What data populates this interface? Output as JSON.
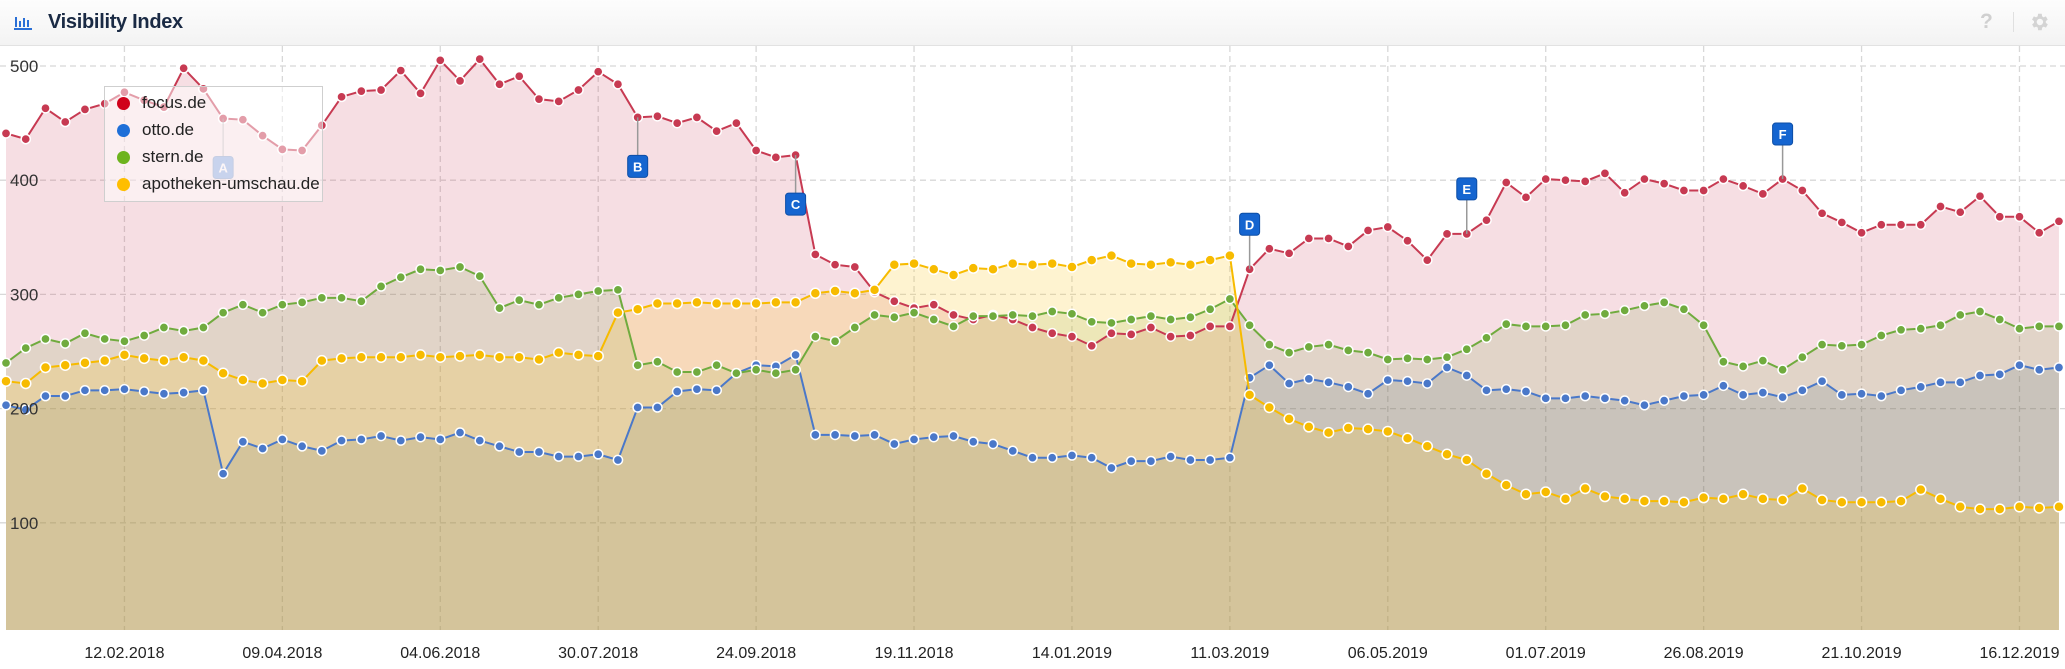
{
  "header": {
    "title": "Visibility Index",
    "help_label": "?"
  },
  "chart_data": {
    "type": "area",
    "title": "Visibility Index",
    "xlabel": "",
    "ylabel": "",
    "ylim": [
      0,
      520
    ],
    "yticks": [
      "100",
      "200",
      "300",
      "400",
      "500"
    ],
    "ytick_values": [
      100,
      200,
      300,
      400,
      500
    ],
    "x_start": "01.01.2018",
    "x_interval": "weekly",
    "xticks": [
      {
        "week": 6,
        "label": "12.02.2018"
      },
      {
        "week": 14,
        "label": "09.04.2018"
      },
      {
        "week": 22,
        "label": "04.06.2018"
      },
      {
        "week": 30,
        "label": "30.07.2018"
      },
      {
        "week": 38,
        "label": "24.09.2018"
      },
      {
        "week": 46,
        "label": "19.11.2018"
      },
      {
        "week": 54,
        "label": "14.01.2019"
      },
      {
        "week": 62,
        "label": "11.03.2019"
      },
      {
        "week": 70,
        "label": "06.05.2019"
      },
      {
        "week": 78,
        "label": "01.07.2019"
      },
      {
        "week": 86,
        "label": "26.08.2019"
      },
      {
        "week": 94,
        "label": "21.10.2019"
      },
      {
        "week": 102,
        "label": "16.12.2019"
      }
    ],
    "grid": true,
    "legend_position": "top-left",
    "series": [
      {
        "name": "focus.de",
        "color": "#c73a52",
        "fill": "rgba(200,60,90,0.17)",
        "values": [
          441,
          436,
          463,
          451,
          462,
          467,
          477,
          470,
          464,
          498,
          480,
          454,
          453,
          439,
          427,
          426,
          448,
          473,
          478,
          479,
          496,
          476,
          505,
          487,
          506,
          484,
          491,
          471,
          469,
          479,
          495,
          484,
          455,
          456,
          450,
          455,
          443,
          450,
          426,
          420,
          422,
          335,
          326,
          324,
          302,
          294,
          288,
          291,
          282,
          278,
          282,
          278,
          271,
          266,
          263,
          255,
          266,
          265,
          271,
          263,
          264,
          272,
          272,
          322,
          340,
          336,
          349,
          349,
          342,
          356,
          359,
          347,
          330,
          353,
          353,
          365,
          398,
          385,
          401,
          400,
          399,
          406,
          389,
          401,
          397,
          391,
          391,
          401,
          395,
          388,
          401,
          391,
          371,
          363,
          354,
          361,
          361,
          361,
          377,
          372,
          386,
          368,
          368,
          354,
          364
        ]
      },
      {
        "name": "otto.de",
        "color": "#4a78c9",
        "fill": "rgba(70,100,130,0.16)",
        "values": [
          203,
          199,
          211,
          211,
          216,
          216,
          217,
          215,
          213,
          214,
          216,
          143,
          171,
          165,
          173,
          167,
          163,
          172,
          173,
          176,
          172,
          175,
          173,
          179,
          172,
          167,
          162,
          162,
          158,
          158,
          160,
          155,
          201,
          201,
          215,
          217,
          216,
          231,
          238,
          237,
          247,
          177,
          177,
          176,
          177,
          169,
          173,
          175,
          176,
          171,
          169,
          163,
          157,
          157,
          159,
          157,
          148,
          154,
          154,
          158,
          155,
          155,
          157,
          227,
          238,
          222,
          226,
          223,
          219,
          213,
          225,
          224,
          222,
          236,
          229,
          216,
          217,
          215,
          209,
          209,
          211,
          209,
          207,
          203,
          207,
          211,
          212,
          220,
          212,
          214,
          210,
          216,
          224,
          212,
          213,
          211,
          216,
          219,
          223,
          223,
          229,
          230,
          238,
          234,
          236
        ]
      },
      {
        "name": "stern.de",
        "color": "#70ab3e",
        "fill": "rgba(120,160,60,0.16)",
        "values": [
          240,
          253,
          261,
          257,
          266,
          261,
          259,
          264,
          271,
          268,
          271,
          284,
          291,
          284,
          291,
          293,
          297,
          297,
          294,
          307,
          315,
          322,
          321,
          324,
          316,
          288,
          295,
          291,
          297,
          300,
          303,
          304,
          238,
          241,
          232,
          232,
          238,
          231,
          234,
          231,
          234,
          263,
          259,
          271,
          282,
          280,
          284,
          278,
          272,
          281,
          281,
          282,
          281,
          285,
          283,
          276,
          275,
          278,
          281,
          278,
          280,
          287,
          296,
          273,
          256,
          249,
          254,
          256,
          251,
          249,
          243,
          244,
          243,
          245,
          252,
          262,
          274,
          272,
          272,
          273,
          282,
          283,
          286,
          290,
          293,
          287,
          273,
          241,
          237,
          242,
          234,
          245,
          256,
          255,
          256,
          264,
          269,
          270,
          273,
          282,
          285,
          278,
          270,
          272,
          272
        ]
      },
      {
        "name": "apotheken-umschau.de",
        "color": "#f7bb00",
        "fill": "rgba(250,200,40,0.22)",
        "values": [
          224,
          222,
          236,
          238,
          240,
          242,
          247,
          244,
          242,
          245,
          242,
          231,
          225,
          222,
          225,
          224,
          242,
          244,
          245,
          245,
          245,
          247,
          245,
          246,
          247,
          245,
          245,
          243,
          249,
          247,
          246,
          284,
          287,
          292,
          292,
          293,
          292,
          292,
          292,
          293,
          293,
          301,
          303,
          301,
          304,
          326,
          327,
          322,
          317,
          323,
          322,
          327,
          326,
          327,
          324,
          330,
          334,
          327,
          326,
          328,
          326,
          330,
          334,
          212,
          201,
          191,
          184,
          179,
          183,
          182,
          180,
          174,
          167,
          160,
          155,
          143,
          133,
          125,
          127,
          121,
          130,
          123,
          121,
          119,
          119,
          118,
          122,
          121,
          125,
          121,
          120,
          130,
          120,
          118,
          118,
          118,
          119,
          129,
          121,
          114,
          112,
          112,
          114,
          113,
          114
        ]
      }
    ],
    "annotations": [
      {
        "label": "A",
        "series": "focus.de",
        "week": 11,
        "placement": "below",
        "muted": true
      },
      {
        "label": "B",
        "series": "focus.de",
        "week": 32,
        "placement": "below"
      },
      {
        "label": "C",
        "series": "focus.de",
        "week": 40,
        "placement": "below"
      },
      {
        "label": "D",
        "series": "focus.de",
        "week": 63,
        "placement": "above"
      },
      {
        "label": "E",
        "series": "focus.de",
        "week": 74,
        "placement": "above"
      },
      {
        "label": "F",
        "series": "focus.de",
        "week": 90,
        "placement": "above"
      }
    ]
  }
}
